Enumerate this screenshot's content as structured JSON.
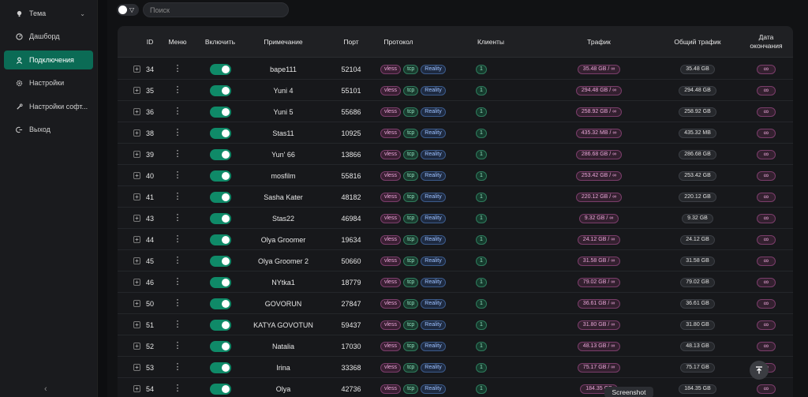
{
  "sidebar": {
    "items": [
      {
        "label": "Тема",
        "icon": "bulb-icon"
      },
      {
        "label": "Дашборд",
        "icon": "dashboard-icon"
      },
      {
        "label": "Подключения",
        "icon": "user-icon"
      },
      {
        "label": "Настройки",
        "icon": "gear-icon"
      },
      {
        "label": "Настройки софт...",
        "icon": "tool-icon"
      },
      {
        "label": "Выход",
        "icon": "logout-icon"
      }
    ]
  },
  "search": {
    "placeholder": "Поиск"
  },
  "table": {
    "headers": {
      "id": "ID",
      "menu": "Меню",
      "enable": "Включить",
      "note": "Примечание",
      "port": "Порт",
      "protocol": "Протокол",
      "clients": "Клиенты",
      "traffic": "Трафик",
      "total": "Общий трафик",
      "expiry": "Дата окончания"
    },
    "rows": [
      {
        "id": "34",
        "note": "bape111",
        "port": "52104",
        "proto": "vless",
        "net": "tcp",
        "sec": "Reality",
        "clients": "1",
        "traffic": "35.48 GB / ∞",
        "total": "35.48 GB",
        "expiry": "∞"
      },
      {
        "id": "35",
        "note": "Yuni 4",
        "port": "55101",
        "proto": "vless",
        "net": "tcp",
        "sec": "Reality",
        "clients": "1",
        "traffic": "294.48 GB / ∞",
        "total": "294.48 GB",
        "expiry": "∞"
      },
      {
        "id": "36",
        "note": "Yuni 5",
        "port": "55686",
        "proto": "vless",
        "net": "tcp",
        "sec": "Reality",
        "clients": "1",
        "traffic": "258.92 GB / ∞",
        "total": "258.92 GB",
        "expiry": "∞"
      },
      {
        "id": "38",
        "note": "Stas11",
        "port": "10925",
        "proto": "vless",
        "net": "tcp",
        "sec": "Reality",
        "clients": "1",
        "traffic": "435.32 MB / ∞",
        "total": "435.32 MB",
        "expiry": "∞"
      },
      {
        "id": "39",
        "note": "Yun' 66",
        "port": "13866",
        "proto": "vless",
        "net": "tcp",
        "sec": "Reality",
        "clients": "1",
        "traffic": "286.68 GB / ∞",
        "total": "286.68 GB",
        "expiry": "∞"
      },
      {
        "id": "40",
        "note": "mosfilm",
        "port": "55816",
        "proto": "vless",
        "net": "tcp",
        "sec": "Reality",
        "clients": "1",
        "traffic": "253.42 GB / ∞",
        "total": "253.42 GB",
        "expiry": "∞"
      },
      {
        "id": "41",
        "note": "Sasha Kater",
        "port": "48182",
        "proto": "vless",
        "net": "tcp",
        "sec": "Reality",
        "clients": "1",
        "traffic": "220.12 GB / ∞",
        "total": "220.12 GB",
        "expiry": "∞"
      },
      {
        "id": "43",
        "note": "Stas22",
        "port": "46984",
        "proto": "vless",
        "net": "tcp",
        "sec": "Reality",
        "clients": "1",
        "traffic": "9.32 GB / ∞",
        "total": "9.32 GB",
        "expiry": "∞"
      },
      {
        "id": "44",
        "note": "Olya Groomer",
        "port": "19634",
        "proto": "vless",
        "net": "tcp",
        "sec": "Reality",
        "clients": "1",
        "traffic": "24.12 GB / ∞",
        "total": "24.12 GB",
        "expiry": "∞"
      },
      {
        "id": "45",
        "note": "Olya Groomer 2",
        "port": "50660",
        "proto": "vless",
        "net": "tcp",
        "sec": "Reality",
        "clients": "1",
        "traffic": "31.58 GB / ∞",
        "total": "31.58 GB",
        "expiry": "∞"
      },
      {
        "id": "46",
        "note": "NYtka1",
        "port": "18779",
        "proto": "vless",
        "net": "tcp",
        "sec": "Reality",
        "clients": "1",
        "traffic": "79.02 GB / ∞",
        "total": "79.02 GB",
        "expiry": "∞"
      },
      {
        "id": "50",
        "note": "GOVORUN",
        "port": "27847",
        "proto": "vless",
        "net": "tcp",
        "sec": "Reality",
        "clients": "1",
        "traffic": "36.61 GB / ∞",
        "total": "36.61 GB",
        "expiry": "∞"
      },
      {
        "id": "51",
        "note": "KATYA GOVOTUN",
        "port": "59437",
        "proto": "vless",
        "net": "tcp",
        "sec": "Reality",
        "clients": "1",
        "traffic": "31.80 GB / ∞",
        "total": "31.80 GB",
        "expiry": "∞"
      },
      {
        "id": "52",
        "note": "Natalia",
        "port": "17030",
        "proto": "vless",
        "net": "tcp",
        "sec": "Reality",
        "clients": "1",
        "traffic": "48.13 GB / ∞",
        "total": "48.13 GB",
        "expiry": "∞"
      },
      {
        "id": "53",
        "note": "Irina",
        "port": "33368",
        "proto": "vless",
        "net": "tcp",
        "sec": "Reality",
        "clients": "1",
        "traffic": "75.17 GB / ∞",
        "total": "75.17 GB",
        "expiry": "∞"
      },
      {
        "id": "54",
        "note": "Olya",
        "port": "42736",
        "proto": "vless",
        "net": "tcp",
        "sec": "Reality",
        "clients": "1",
        "traffic": "184.35 GB",
        "total": "184.35 GB",
        "expiry": "∞"
      }
    ]
  },
  "tooltip": {
    "text": "Screenshot"
  },
  "colors": {
    "accent": "#0b6b55",
    "switch_on": "#0f8a68",
    "background": "#111214"
  }
}
